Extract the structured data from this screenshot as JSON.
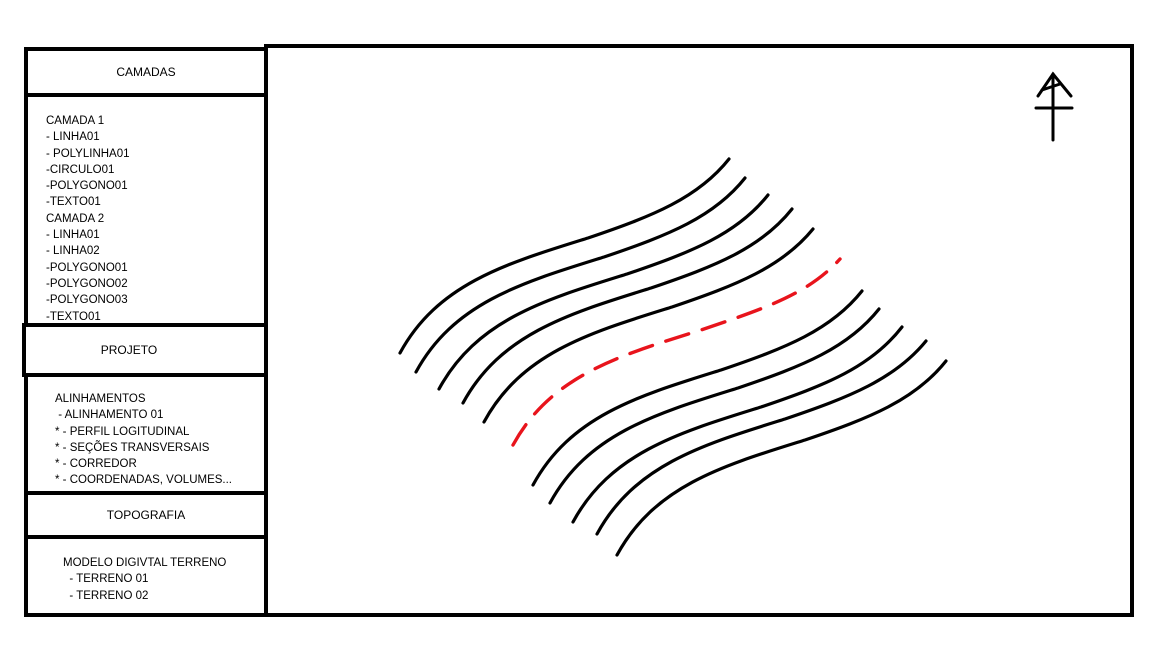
{
  "sidebar": {
    "layers": {
      "header": "CAMADAS",
      "items": [
        "CAMADA 1",
        "- LINHA01",
        "- POLYLINHA01",
        "-CIRCULO01",
        "-POLYGONO01",
        "-TEXTO01",
        "CAMADA 2",
        "- LINHA01",
        "- LINHA02",
        "-POLYGONO01",
        "-POLYGONO02",
        "-POLYGONO03",
        "-TEXTO01"
      ]
    },
    "project": {
      "header": "PROJETO",
      "items": [
        "ALINHAMENTOS",
        " - ALINHAMENTO 01",
        "* - PERFIL LOGITUDINAL",
        "* - SEÇÕES TRANSVERSAIS",
        "* - CORREDOR",
        "* - COORDENADAS, VOLUMES..."
      ]
    },
    "topography": {
      "header": "TOPOGRAFIA",
      "items": [
        "MODELO DIGIVTAL TERRENO",
        "  - TERRENO 01",
        "  - TERRENO 02"
      ]
    }
  },
  "canvas": {
    "north_arrow_icon": "north-arrow-icon",
    "contour_color": "#000000",
    "alignment_color": "#e8141c"
  }
}
